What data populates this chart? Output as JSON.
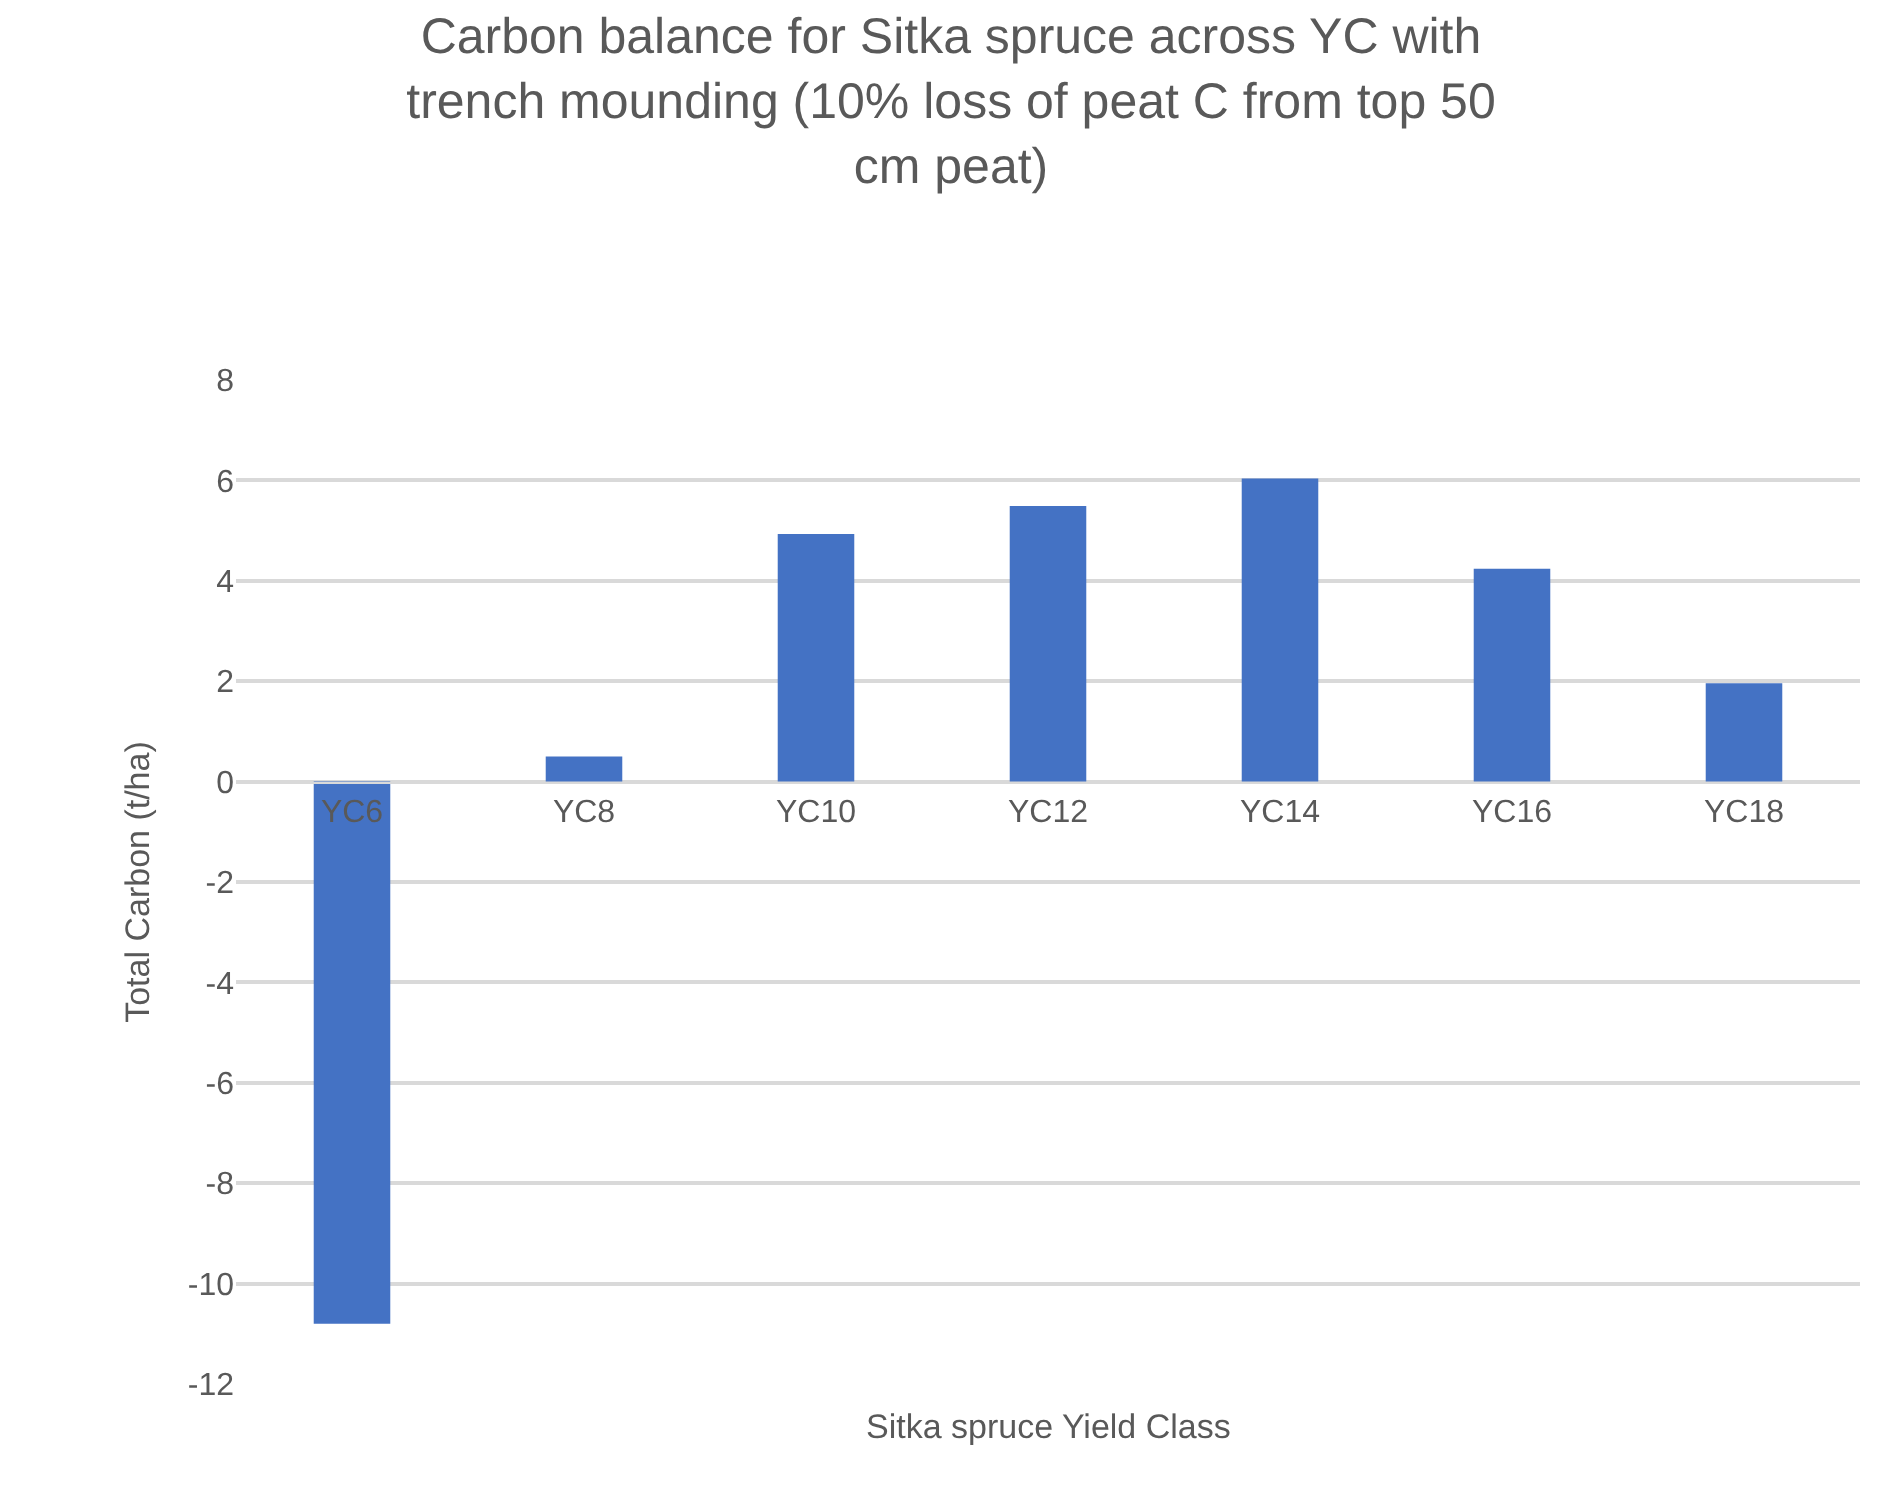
{
  "chart_data": {
    "type": "bar",
    "title": "Carbon balance for Sitka spruce across YC with\ntrench mounding (10% loss of peat C from top 50\ncm peat)",
    "xlabel": "Sitka spruce Yield Class",
    "ylabel": "Total Carbon (t/ha)",
    "categories": [
      "YC6",
      "YC8",
      "YC10",
      "YC12",
      "YC14",
      "YC16",
      "YC18"
    ],
    "values": [
      -10.8,
      0.5,
      4.93,
      5.49,
      6.04,
      4.24,
      1.96
    ],
    "color": "#4472c4",
    "ylim": [
      -12,
      8
    ],
    "yticks": [
      -12,
      -10,
      -8,
      -6,
      -4,
      -2,
      0,
      2,
      4,
      6,
      8
    ],
    "grid": "y"
  }
}
